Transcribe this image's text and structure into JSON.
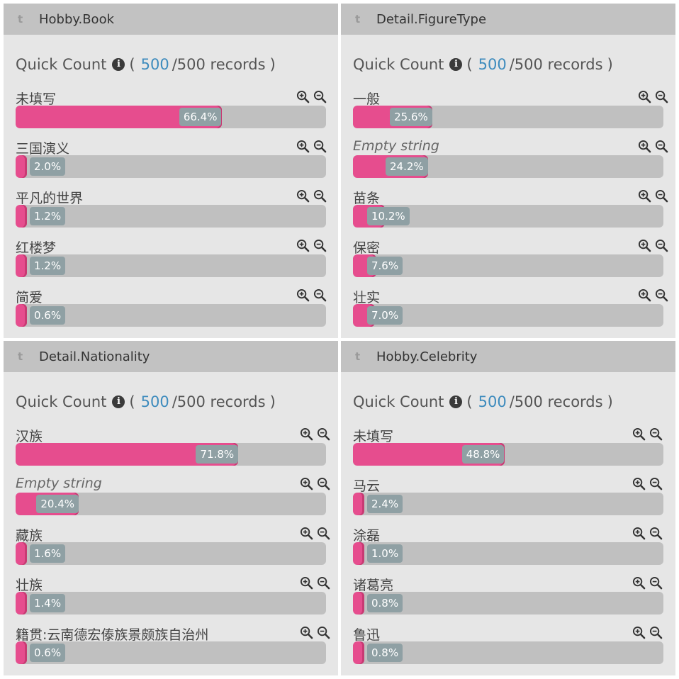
{
  "colors": {
    "bar": "#e64d8e",
    "track": "#c0c0c0",
    "count": "#3d8bbd"
  },
  "panels": [
    {
      "title": "Hobby.Book",
      "type_icon": "t",
      "quick": {
        "label": "Quick Count",
        "open": "(",
        "count": "500",
        "total": "/500 records",
        "close": ")"
      },
      "rows": [
        {
          "label": "未填写",
          "pct": "66.4%",
          "value": 66.4,
          "empty": false
        },
        {
          "label": "三国演义",
          "pct": "2.0%",
          "value": 2.0,
          "empty": false
        },
        {
          "label": "平凡的世界",
          "pct": "1.2%",
          "value": 1.2,
          "empty": false
        },
        {
          "label": "红楼梦",
          "pct": "1.2%",
          "value": 1.2,
          "empty": false
        },
        {
          "label": "简爱",
          "pct": "0.6%",
          "value": 0.6,
          "empty": false
        }
      ]
    },
    {
      "title": "Detail.FigureType",
      "type_icon": "t",
      "quick": {
        "label": "Quick Count",
        "open": "(",
        "count": "500",
        "total": "/500 records",
        "close": ")"
      },
      "rows": [
        {
          "label": "一般",
          "pct": "25.6%",
          "value": 25.6,
          "empty": false
        },
        {
          "label": "Empty string",
          "pct": "24.2%",
          "value": 24.2,
          "empty": true
        },
        {
          "label": "苗条",
          "pct": "10.2%",
          "value": 10.2,
          "empty": false
        },
        {
          "label": "保密",
          "pct": "7.6%",
          "value": 7.6,
          "empty": false
        },
        {
          "label": "壮实",
          "pct": "7.0%",
          "value": 7.0,
          "empty": false
        }
      ]
    },
    {
      "title": "Detail.Nationality",
      "type_icon": "t",
      "quick": {
        "label": "Quick Count",
        "open": "(",
        "count": "500",
        "total": "/500 records",
        "close": ")"
      },
      "rows": [
        {
          "label": "汉族",
          "pct": "71.8%",
          "value": 71.8,
          "empty": false
        },
        {
          "label": "Empty string",
          "pct": "20.4%",
          "value": 20.4,
          "empty": true
        },
        {
          "label": "藏族",
          "pct": "1.6%",
          "value": 1.6,
          "empty": false
        },
        {
          "label": "壮族",
          "pct": "1.4%",
          "value": 1.4,
          "empty": false
        },
        {
          "label": "籍贯:云南德宏傣族景颇族自治州",
          "pct": "0.6%",
          "value": 0.6,
          "empty": false
        }
      ]
    },
    {
      "title": "Hobby.Celebrity",
      "type_icon": "t",
      "quick": {
        "label": "Quick Count",
        "open": "(",
        "count": "500",
        "total": "/500 records",
        "close": ")"
      },
      "rows": [
        {
          "label": "未填写",
          "pct": "48.8%",
          "value": 48.8,
          "empty": false
        },
        {
          "label": "马云",
          "pct": "2.4%",
          "value": 2.4,
          "empty": false
        },
        {
          "label": "涂磊",
          "pct": "1.0%",
          "value": 1.0,
          "empty": false
        },
        {
          "label": "诸葛亮",
          "pct": "0.8%",
          "value": 0.8,
          "empty": false
        },
        {
          "label": "鲁迅",
          "pct": "0.8%",
          "value": 0.8,
          "empty": false
        }
      ]
    }
  ]
}
